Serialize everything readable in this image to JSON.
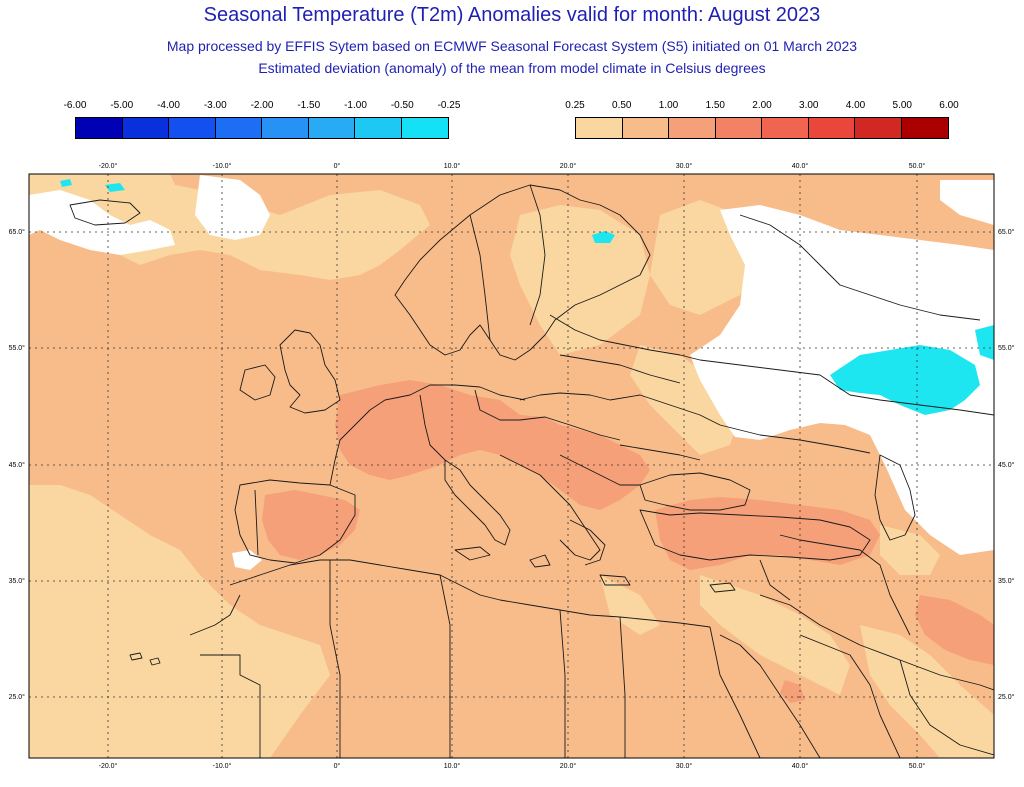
{
  "header": {
    "title": "Seasonal Temperature (T2m) Anomalies valid for month: August 2023",
    "subtitle_1": "Map processed by EFFIS Sytem based on ECMWF Seasonal Forecast System (S5) initiated on 01 March 2023",
    "subtitle_2": "Estimated deviation (anomaly) of the mean from model climate in Celsius degrees"
  },
  "legend": {
    "negative": {
      "labels": [
        "-6.00",
        "-5.00",
        "-4.00",
        "-3.00",
        "-2.00",
        "-1.50",
        "-1.00",
        "-0.50",
        "-0.25"
      ],
      "colors": [
        "#0000b4",
        "#0a2fdc",
        "#1450f0",
        "#1e6ef5",
        "#2891f5",
        "#28aaf5",
        "#1ec8f5",
        "#14e1f5"
      ]
    },
    "positive": {
      "labels": [
        "0.25",
        "0.50",
        "1.00",
        "1.50",
        "2.00",
        "3.00",
        "4.00",
        "5.00",
        "6.00"
      ],
      "colors": [
        "#fad7a0",
        "#f8bc8a",
        "#f5a078",
        "#f38264",
        "#f06450",
        "#eb463c",
        "#d22823",
        "#aa0000"
      ]
    }
  },
  "map": {
    "lon_ticks": [
      "-20.0°",
      "-10.0°",
      "0°",
      "10.0°",
      "20.0°",
      "30.0°",
      "40.0°",
      "50.0°"
    ],
    "lat_ticks": [
      "65.0°",
      "55.0°",
      "45.0°",
      "35.0°",
      "25.0°"
    ],
    "colors": {
      "base": "#f8bc8a",
      "light": "#fad7a0",
      "warm": "#f5a078",
      "cold": "#1ee6f0",
      "none": "#ffffff",
      "border": "#1a1a1a"
    }
  }
}
